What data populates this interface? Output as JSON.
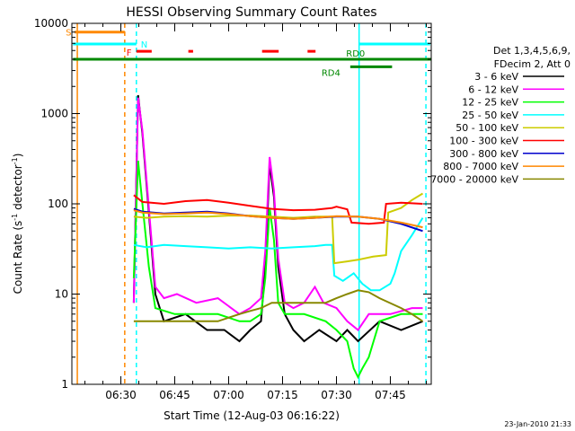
{
  "chart_data": {
    "type": "line",
    "title": "HESSI Observing Summary Count Rates",
    "xlabel": "Start Time (12-Aug-03 06:16:22)",
    "ylabel_main": "Count Rate (s",
    "ylabel_sup1": "-1",
    "ylabel_mid": " detector",
    "ylabel_sup2": "-1",
    "ylabel_end": ")",
    "footer": "23-Jan-2010 21:33",
    "xlim": [
      6.2728,
      7.9397
    ],
    "ylim": [
      1,
      10000
    ],
    "yscale": "log",
    "grid": false,
    "x_ticks": [
      {
        "v": 6.5,
        "label": "06:30"
      },
      {
        "v": 6.75,
        "label": "06:45"
      },
      {
        "v": 7.0,
        "label": "07:00"
      },
      {
        "v": 7.25,
        "label": "07:15"
      },
      {
        "v": 7.5,
        "label": "07:30"
      },
      {
        "v": 7.75,
        "label": "07:45"
      }
    ],
    "x_minor_step": 0.0833333,
    "y_ticks": [
      {
        "v": 1,
        "label": "1"
      },
      {
        "v": 10,
        "label": "10"
      },
      {
        "v": 100,
        "label": "100"
      },
      {
        "v": 1000,
        "label": "1000"
      },
      {
        "v": 10000,
        "label": "10000"
      }
    ],
    "legend": {
      "header": [
        "Det 1,3,4,5,6,9,",
        "FDecim 2, Att 0"
      ],
      "placement": "right"
    },
    "series": [
      {
        "name": "3 - 6 keV",
        "color": "#000000",
        "points": [
          [
            6.56,
            8
          ],
          [
            6.58,
            1600
          ],
          [
            6.6,
            600
          ],
          [
            6.63,
            80
          ],
          [
            6.66,
            10
          ],
          [
            6.7,
            5
          ],
          [
            6.8,
            6
          ],
          [
            6.9,
            4
          ],
          [
            6.98,
            4
          ],
          [
            7.05,
            3
          ],
          [
            7.1,
            4
          ],
          [
            7.15,
            5
          ],
          [
            7.17,
            20
          ],
          [
            7.19,
            280
          ],
          [
            7.21,
            120
          ],
          [
            7.23,
            20
          ],
          [
            7.26,
            6
          ],
          [
            7.3,
            4
          ],
          [
            7.35,
            3
          ],
          [
            7.42,
            4
          ],
          [
            7.5,
            3
          ],
          [
            7.55,
            4
          ],
          [
            7.6,
            3
          ],
          [
            7.7,
            5
          ],
          [
            7.8,
            4
          ],
          [
            7.9,
            5
          ]
        ]
      },
      {
        "name": "6 - 12 keV",
        "color": "#ff00ff",
        "points": [
          [
            6.56,
            8
          ],
          [
            6.58,
            1500
          ],
          [
            6.6,
            650
          ],
          [
            6.63,
            90
          ],
          [
            6.66,
            12
          ],
          [
            6.7,
            9
          ],
          [
            6.76,
            10
          ],
          [
            6.85,
            8
          ],
          [
            6.95,
            9
          ],
          [
            7.05,
            6
          ],
          [
            7.1,
            7
          ],
          [
            7.15,
            9
          ],
          [
            7.17,
            30
          ],
          [
            7.19,
            330
          ],
          [
            7.21,
            140
          ],
          [
            7.23,
            25
          ],
          [
            7.26,
            8
          ],
          [
            7.3,
            7
          ],
          [
            7.35,
            8
          ],
          [
            7.4,
            12
          ],
          [
            7.44,
            8
          ],
          [
            7.5,
            7
          ],
          [
            7.55,
            5
          ],
          [
            7.6,
            4
          ],
          [
            7.65,
            6
          ],
          [
            7.75,
            6
          ],
          [
            7.85,
            7
          ],
          [
            7.9,
            7
          ]
        ]
      },
      {
        "name": "12 - 25 keV",
        "color": "#00ff00",
        "points": [
          [
            6.56,
            15
          ],
          [
            6.58,
            300
          ],
          [
            6.6,
            100
          ],
          [
            6.63,
            20
          ],
          [
            6.66,
            7
          ],
          [
            6.75,
            6
          ],
          [
            6.85,
            6
          ],
          [
            6.95,
            6
          ],
          [
            7.05,
            5
          ],
          [
            7.1,
            5
          ],
          [
            7.15,
            6
          ],
          [
            7.17,
            15
          ],
          [
            7.19,
            90
          ],
          [
            7.21,
            40
          ],
          [
            7.23,
            8
          ],
          [
            7.26,
            6
          ],
          [
            7.35,
            6
          ],
          [
            7.45,
            5
          ],
          [
            7.5,
            4
          ],
          [
            7.55,
            3
          ],
          [
            7.58,
            1.5
          ],
          [
            7.6,
            1.2
          ],
          [
            7.62,
            1.5
          ],
          [
            7.65,
            2
          ],
          [
            7.7,
            5
          ],
          [
            7.8,
            6
          ],
          [
            7.9,
            6
          ]
        ]
      },
      {
        "name": "25 - 50 keV",
        "color": "#00ffff",
        "points": [
          [
            6.56,
            35
          ],
          [
            6.62,
            33
          ],
          [
            6.7,
            35
          ],
          [
            6.8,
            34
          ],
          [
            6.9,
            33
          ],
          [
            7.0,
            32
          ],
          [
            7.1,
            33
          ],
          [
            7.2,
            32
          ],
          [
            7.3,
            33
          ],
          [
            7.4,
            34
          ],
          [
            7.45,
            35
          ],
          [
            7.48,
            35
          ],
          [
            7.49,
            16
          ],
          [
            7.53,
            14
          ],
          [
            7.58,
            17
          ],
          [
            7.62,
            13
          ],
          [
            7.66,
            11
          ],
          [
            7.7,
            11
          ],
          [
            7.75,
            13
          ],
          [
            7.77,
            17
          ],
          [
            7.8,
            30
          ],
          [
            7.85,
            45
          ],
          [
            7.9,
            70
          ]
        ]
      },
      {
        "name": "50 - 100 keV",
        "color": "#cccc00",
        "points": [
          [
            6.56,
            72
          ],
          [
            6.62,
            70
          ],
          [
            6.7,
            72
          ],
          [
            6.8,
            73
          ],
          [
            6.9,
            72
          ],
          [
            7.0,
            74
          ],
          [
            7.1,
            74
          ],
          [
            7.2,
            72
          ],
          [
            7.3,
            70
          ],
          [
            7.4,
            72
          ],
          [
            7.48,
            72
          ],
          [
            7.49,
            22
          ],
          [
            7.55,
            23
          ],
          [
            7.6,
            24
          ],
          [
            7.67,
            26
          ],
          [
            7.73,
            27
          ],
          [
            7.74,
            80
          ],
          [
            7.8,
            90
          ],
          [
            7.85,
            110
          ],
          [
            7.9,
            130
          ]
        ]
      },
      {
        "name": "100 - 300 keV",
        "color": "#ff0000",
        "points": [
          [
            6.56,
            125
          ],
          [
            6.6,
            105
          ],
          [
            6.7,
            100
          ],
          [
            6.8,
            107
          ],
          [
            6.9,
            110
          ],
          [
            7.0,
            103
          ],
          [
            7.1,
            95
          ],
          [
            7.2,
            88
          ],
          [
            7.3,
            85
          ],
          [
            7.4,
            86
          ],
          [
            7.48,
            90
          ],
          [
            7.5,
            93
          ],
          [
            7.55,
            87
          ],
          [
            7.57,
            62
          ],
          [
            7.65,
            60
          ],
          [
            7.72,
            62
          ],
          [
            7.73,
            100
          ],
          [
            7.8,
            103
          ],
          [
            7.9,
            100
          ]
        ]
      },
      {
        "name": "300 - 800 keV",
        "color": "#0000cc",
        "points": [
          [
            6.56,
            88
          ],
          [
            6.6,
            82
          ],
          [
            6.7,
            78
          ],
          [
            6.8,
            80
          ],
          [
            6.9,
            82
          ],
          [
            7.0,
            78
          ],
          [
            7.1,
            73
          ],
          [
            7.2,
            70
          ],
          [
            7.3,
            68
          ],
          [
            7.4,
            70
          ],
          [
            7.5,
            72
          ],
          [
            7.6,
            72
          ],
          [
            7.7,
            68
          ],
          [
            7.8,
            60
          ],
          [
            7.9,
            50
          ]
        ]
      },
      {
        "name": "800 - 7000 keV",
        "color": "#ff8800",
        "points": [
          [
            6.56,
            85
          ],
          [
            6.6,
            80
          ],
          [
            6.7,
            77
          ],
          [
            6.8,
            78
          ],
          [
            6.9,
            80
          ],
          [
            7.0,
            77
          ],
          [
            7.1,
            73
          ],
          [
            7.2,
            70
          ],
          [
            7.3,
            68
          ],
          [
            7.4,
            70
          ],
          [
            7.5,
            73
          ],
          [
            7.6,
            72
          ],
          [
            7.7,
            68
          ],
          [
            7.8,
            62
          ],
          [
            7.9,
            55
          ]
        ]
      },
      {
        "name": "7000 - 20000 keV",
        "color": "#888800",
        "points": [
          [
            6.56,
            5
          ],
          [
            6.65,
            5
          ],
          [
            6.75,
            5
          ],
          [
            6.85,
            5
          ],
          [
            6.95,
            5
          ],
          [
            7.05,
            6
          ],
          [
            7.1,
            6.5
          ],
          [
            7.15,
            7
          ],
          [
            7.2,
            8
          ],
          [
            7.3,
            8
          ],
          [
            7.4,
            8
          ],
          [
            7.45,
            8
          ],
          [
            7.5,
            9
          ],
          [
            7.55,
            10
          ],
          [
            7.6,
            11
          ],
          [
            7.65,
            10.5
          ],
          [
            7.7,
            9
          ],
          [
            7.8,
            7
          ],
          [
            7.85,
            6
          ],
          [
            7.9,
            5
          ]
        ]
      }
    ],
    "vlines": [
      {
        "x": 6.298,
        "color": "#ff8800",
        "dashed": false
      },
      {
        "x": 6.518,
        "color": "#ff8800",
        "dashed": true
      },
      {
        "x": 6.572,
        "color": "#00ffff",
        "dashed": true
      },
      {
        "x": 7.605,
        "color": "#00ffff",
        "dashed": false
      },
      {
        "x": 7.915,
        "color": "#00ffff",
        "dashed": true
      }
    ],
    "flags": [
      {
        "label": "S",
        "color": "#ff8800",
        "y": 8000,
        "segments": [
          [
            6.286,
            6.518
          ]
        ]
      },
      {
        "label": "N",
        "color": "#00ffff",
        "y": 5900,
        "segments": [
          [
            6.278,
            6.572
          ],
          [
            7.605,
            7.935
          ]
        ]
      },
      {
        "label": "F",
        "color": "#ff0000",
        "y": 4900,
        "segments": [
          [
            6.572,
            6.643
          ],
          [
            6.813,
            6.835
          ],
          [
            7.155,
            7.232
          ],
          [
            7.366,
            7.403
          ]
        ]
      },
      {
        "label": "RD0",
        "color": "#008800",
        "y": 4000,
        "segments": [
          [
            6.278,
            7.938
          ]
        ]
      },
      {
        "label": "RD4",
        "color": "#008800",
        "y": 3300,
        "segments": [
          [
            7.564,
            7.758
          ]
        ]
      }
    ]
  }
}
